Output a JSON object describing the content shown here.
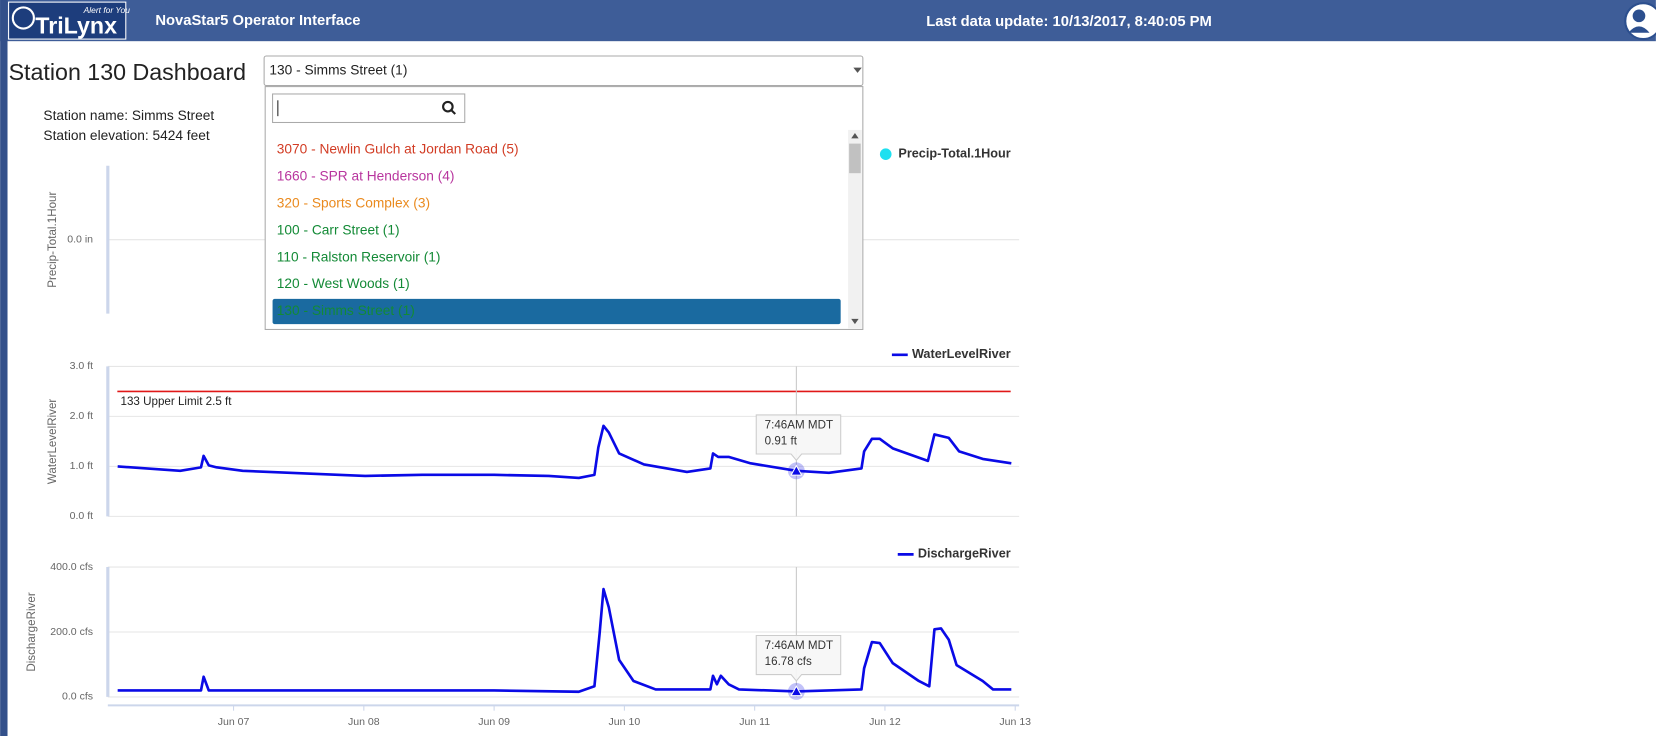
{
  "header": {
    "logo_text": "TriLynx",
    "logo_tagline": "Alert for You",
    "title": "NovaStar5 Operator Interface",
    "last_update": "Last data update: 10/13/2017, 8:40:05 PM"
  },
  "dashboard_title": "Station 130 Dashboard",
  "station_info": [
    "Station name: Simms Street",
    "Station elevation: 5424 feet"
  ],
  "dropdown": {
    "selected": "130 - Simms Street (1)",
    "highlighted": 6,
    "options": [
      {
        "label": "3070 - Newlin Gulch at Jordan Road (5)",
        "color": "#d23c24"
      },
      {
        "label": "1660 - SPR at Henderson (4)",
        "color": "#b8359e"
      },
      {
        "label": "320 - Sports Complex (3)",
        "color": "#ea8a1e"
      },
      {
        "label": "100 - Carr Street (1)",
        "color": "#138a36"
      },
      {
        "label": "110 - Ralston Reservoir (1)",
        "color": "#138a36"
      },
      {
        "label": "120 - West Woods (1)",
        "color": "#138a36"
      },
      {
        "label": "130 - Simms Street (1)",
        "color": "#138a36"
      }
    ]
  },
  "chart_data": [
    {
      "type": "scatter",
      "y_label": "Precip-Total.1Hour",
      "ylim": [
        -1,
        1
      ],
      "yticks": [
        {
          "value": 0,
          "label": "0.0 in"
        }
      ],
      "grid": true,
      "legend": "top-right",
      "x": [],
      "series": [
        {
          "name": "Precip-Total.1Hour",
          "color": "#1de0f0",
          "values": []
        }
      ]
    },
    {
      "type": "line",
      "y_label": "WaterLevelRiver",
      "xlim": [
        6.035,
        13.03
      ],
      "ylim": [
        0,
        3
      ],
      "yticks": [
        {
          "value": 0,
          "label": "0.0 ft"
        },
        {
          "value": 1,
          "label": "1.0 ft"
        },
        {
          "value": 2,
          "label": "2.0 ft"
        },
        {
          "value": 3,
          "label": "3.0 ft"
        }
      ],
      "grid": true,
      "legend": "top-right",
      "x": [
        6.11,
        6.59,
        6.75,
        6.77,
        6.81,
        6.87,
        7.07,
        7.64,
        8.01,
        8.45,
        9.0,
        9.42,
        9.65,
        9.77,
        9.8,
        9.84,
        9.88,
        9.96,
        10.15,
        10.48,
        10.66,
        10.68,
        10.72,
        10.8,
        10.97,
        11.32,
        11.57,
        11.82,
        11.84,
        11.9,
        11.96,
        12.06,
        12.33,
        12.38,
        12.49,
        12.57,
        12.75,
        12.97
      ],
      "series": [
        {
          "name": "WaterLevelRiver",
          "color": "#0a0ae6",
          "values": [
            1,
            0.91,
            0.98,
            1.21,
            1.02,
            0.98,
            0.91,
            0.85,
            0.81,
            0.83,
            0.83,
            0.81,
            0.77,
            0.83,
            1.38,
            1.81,
            1.68,
            1.26,
            1.04,
            0.89,
            0.96,
            1.26,
            1.19,
            1.19,
            1.06,
            0.91,
            0.87,
            0.96,
            1.3,
            1.55,
            1.55,
            1.36,
            1.11,
            1.64,
            1.57,
            1.3,
            1.15,
            1.06
          ]
        }
      ],
      "thresholds": [
        {
          "value": 2.5,
          "label": "133 Upper Limit 2.5 ft",
          "color": "#e01818"
        }
      ],
      "tooltip": {
        "x": 11.32,
        "lines": [
          "7:46AM MDT",
          "0.91 ft"
        ]
      }
    },
    {
      "type": "line",
      "y_label": "DischargeRiver",
      "xlim": [
        6.035,
        13.03
      ],
      "ylim": [
        0,
        400
      ],
      "yticks": [
        {
          "value": 0,
          "label": "0.0 cfs"
        },
        {
          "value": 200,
          "label": "200.0 cfs"
        },
        {
          "value": 400,
          "label": "400.0 cfs"
        }
      ],
      "xticks": [
        {
          "value": 7,
          "label": "Jun 07"
        },
        {
          "value": 8,
          "label": "Jun 08"
        },
        {
          "value": 9,
          "label": "Jun 09"
        },
        {
          "value": 10,
          "label": "Jun 10"
        },
        {
          "value": 11,
          "label": "Jun 11"
        },
        {
          "value": 12,
          "label": "Jun 12"
        },
        {
          "value": 13,
          "label": "Jun 13"
        }
      ],
      "grid": true,
      "legend": "top-right",
      "x": [
        6.11,
        6.75,
        6.77,
        6.81,
        7.07,
        9.0,
        9.65,
        9.77,
        9.81,
        9.84,
        9.88,
        9.96,
        10.07,
        10.24,
        10.66,
        10.68,
        10.71,
        10.74,
        10.8,
        10.88,
        11.32,
        11.82,
        11.84,
        11.9,
        11.96,
        12.06,
        12.26,
        12.34,
        12.38,
        12.43,
        12.49,
        12.55,
        12.75,
        12.83,
        12.97
      ],
      "series": [
        {
          "name": "DischargeRiver",
          "color": "#0a0ae6",
          "values": [
            20,
            20,
            62,
            20,
            20,
            20,
            16,
            33,
            195,
            332,
            276,
            114,
            49,
            23,
            23,
            65,
            39,
            65,
            39,
            23,
            16.78,
            23,
            88,
            169,
            166,
            104,
            49,
            33,
            208,
            211,
            176,
            98,
            49,
            23,
            23
          ]
        }
      ],
      "tooltip": {
        "x": 11.32,
        "lines": [
          "7:46AM MDT",
          "16.78 cfs"
        ]
      }
    }
  ]
}
